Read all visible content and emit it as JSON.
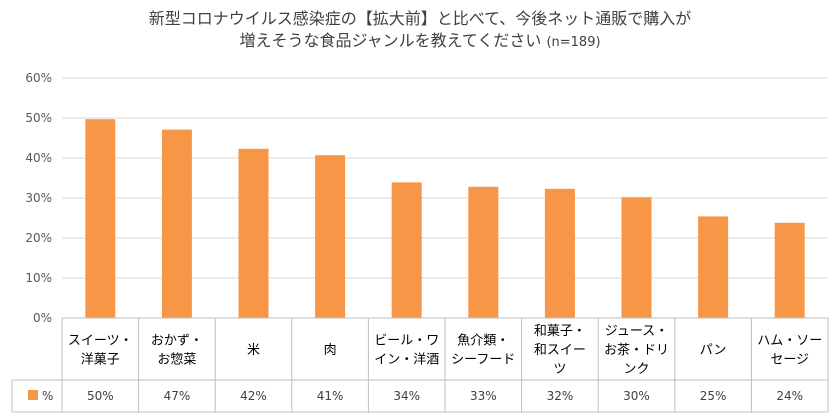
{
  "chart_data": {
    "type": "bar",
    "title_line1": "新型コロナウイルス感染症の【拡大前】と比べて、今後ネット通販で購入が",
    "title_line2": "増えそうな食品ジャンルを教えてください",
    "subtitle": "(n=189)",
    "categories": [
      [
        "スイーツ・",
        "洋菓子"
      ],
      [
        "おかず・",
        "お惣菜"
      ],
      [
        "米"
      ],
      [
        "肉"
      ],
      [
        "ビール・ワ",
        "イン・洋酒"
      ],
      [
        "魚介類・",
        "シーフード"
      ],
      [
        "和菓子・",
        "和スイー",
        "ツ"
      ],
      [
        "ジュース・",
        "お茶・ドリ",
        "ンク"
      ],
      [
        "パン"
      ],
      [
        "ハム・ソー",
        "セージ"
      ]
    ],
    "series": [
      {
        "name": "%",
        "values": [
          49.7,
          47.1,
          42.3,
          40.7,
          33.9,
          32.8,
          32.3,
          30.2,
          25.4,
          23.8
        ]
      }
    ],
    "value_labels": [
      "50%",
      "47%",
      "42%",
      "41%",
      "34%",
      "33%",
      "32%",
      "30%",
      "25%",
      "24%"
    ],
    "y_ticks": [
      "0%",
      "10%",
      "20%",
      "30%",
      "40%",
      "50%",
      "60%"
    ],
    "ylim": [
      0,
      60
    ],
    "grid": true,
    "legend": "data-table",
    "bar_color": "#F79646",
    "axis_color": "#BFBFBF",
    "grid_color": "#D9D9D9"
  }
}
